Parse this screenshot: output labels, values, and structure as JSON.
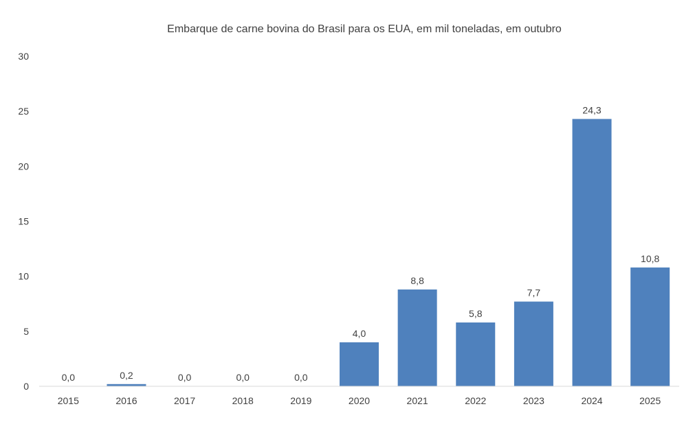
{
  "chart_data": {
    "type": "bar",
    "title": "Embarque de carne bovina do Brasil para os EUA, em mil toneladas, em outubro",
    "xlabel": "",
    "ylabel": "",
    "categories": [
      "2015",
      "2016",
      "2017",
      "2018",
      "2019",
      "2020",
      "2021",
      "2022",
      "2023",
      "2024",
      "2025"
    ],
    "values": [
      0.0,
      0.2,
      0.0,
      0.0,
      0.0,
      4.0,
      8.8,
      5.8,
      7.7,
      24.3,
      10.8
    ],
    "data_labels": [
      "0,0",
      "0,2",
      "0,0",
      "0,0",
      "0,0",
      "4,0",
      "8,8",
      "5,8",
      "7,7",
      "24,3",
      "10,8"
    ],
    "ylim": [
      0,
      30
    ],
    "yticks": [
      "0",
      "5",
      "10",
      "15",
      "20",
      "25",
      "30"
    ],
    "grid": false,
    "legend": "none",
    "bar_color": "#4f81bd"
  }
}
